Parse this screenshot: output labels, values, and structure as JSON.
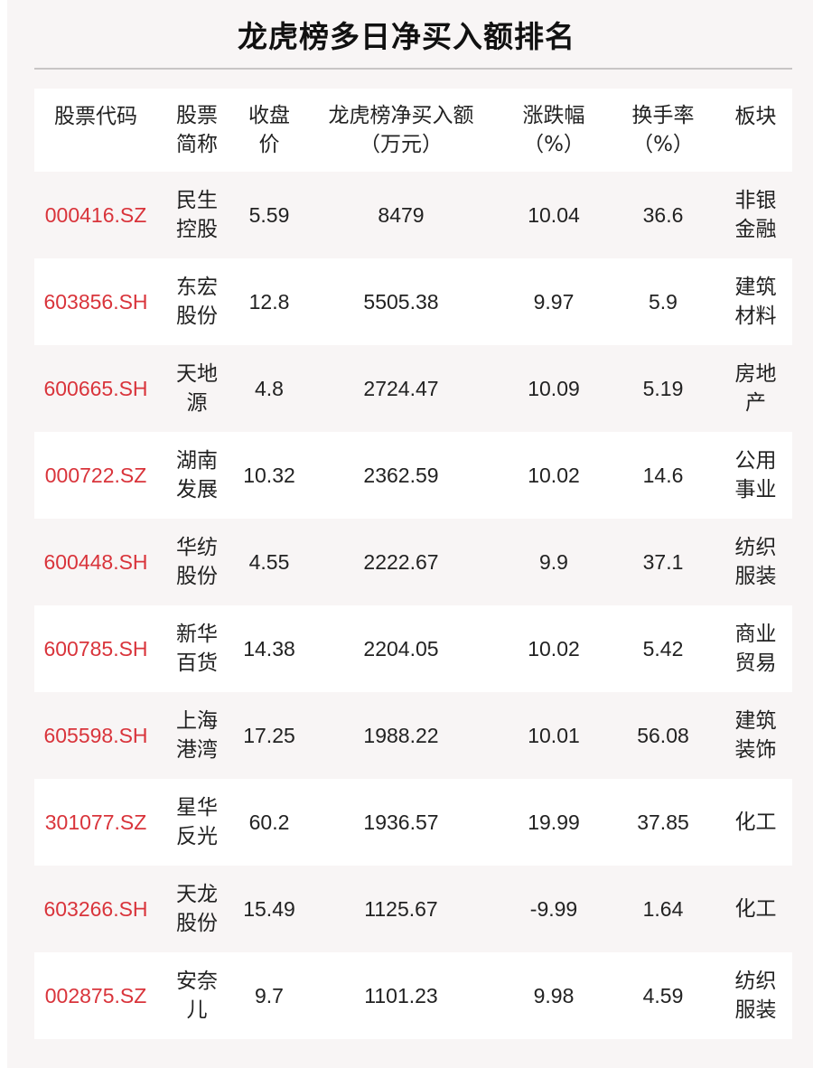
{
  "title": "龙虎榜多日净买入额排名",
  "colors": {
    "code": "#d9343b",
    "row_alt": "#f8f5f5"
  },
  "headers": [
    "股票代码",
    "股票简称",
    "收盘价",
    "龙虎榜净买入额（万元）",
    "涨跌幅（%）",
    "换手率（%）",
    "板块"
  ],
  "rows": [
    {
      "code": "000416.SZ",
      "name": "民生控股",
      "close": "5.59",
      "net_buy": "8479",
      "change": "10.04",
      "turnover": "36.6",
      "sector": "非银金融"
    },
    {
      "code": "603856.SH",
      "name": "东宏股份",
      "close": "12.8",
      "net_buy": "5505.38",
      "change": "9.97",
      "turnover": "5.9",
      "sector": "建筑材料"
    },
    {
      "code": "600665.SH",
      "name": "天地源",
      "close": "4.8",
      "net_buy": "2724.47",
      "change": "10.09",
      "turnover": "5.19",
      "sector": "房地产"
    },
    {
      "code": "000722.SZ",
      "name": "湖南发展",
      "close": "10.32",
      "net_buy": "2362.59",
      "change": "10.02",
      "turnover": "14.6",
      "sector": "公用事业"
    },
    {
      "code": "600448.SH",
      "name": "华纺股份",
      "close": "4.55",
      "net_buy": "2222.67",
      "change": "9.9",
      "turnover": "37.1",
      "sector": "纺织服装"
    },
    {
      "code": "600785.SH",
      "name": "新华百货",
      "close": "14.38",
      "net_buy": "2204.05",
      "change": "10.02",
      "turnover": "5.42",
      "sector": "商业贸易"
    },
    {
      "code": "605598.SH",
      "name": "上海港湾",
      "close": "17.25",
      "net_buy": "1988.22",
      "change": "10.01",
      "turnover": "56.08",
      "sector": "建筑装饰"
    },
    {
      "code": "301077.SZ",
      "name": "星华反光",
      "close": "60.2",
      "net_buy": "1936.57",
      "change": "19.99",
      "turnover": "37.85",
      "sector": "化工"
    },
    {
      "code": "603266.SH",
      "name": "天龙股份",
      "close": "15.49",
      "net_buy": "1125.67",
      "change": "-9.99",
      "turnover": "1.64",
      "sector": "化工"
    },
    {
      "code": "002875.SZ",
      "name": "安奈儿",
      "close": "9.7",
      "net_buy": "1101.23",
      "change": "9.98",
      "turnover": "4.59",
      "sector": "纺织服装"
    }
  ]
}
